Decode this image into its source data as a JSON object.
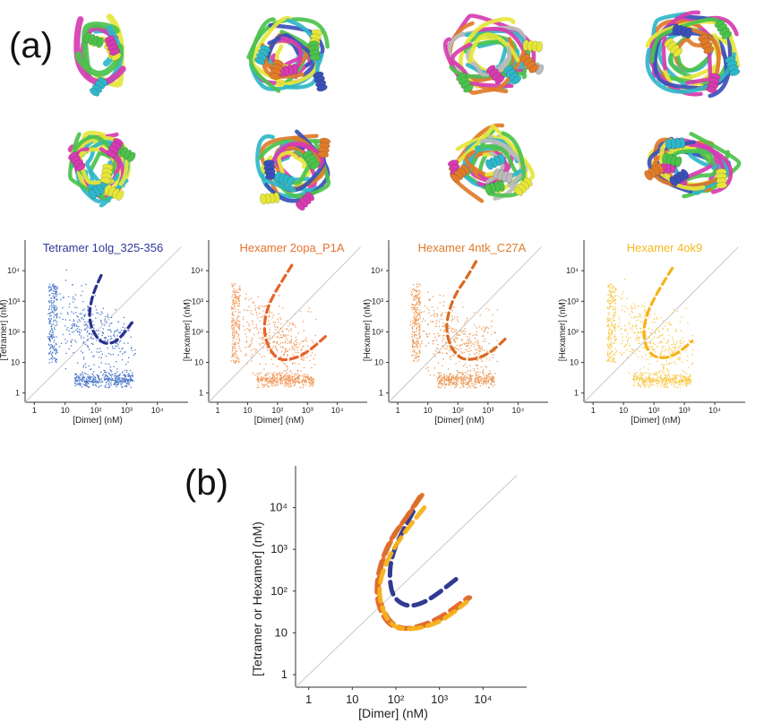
{
  "panel_labels": {
    "a": "(a)",
    "b": "(b)"
  },
  "structures": [
    {
      "name": "structure-tetramer-1olg",
      "colors": [
        "#2fb7c9",
        "#e6e63a",
        "#d63cb0",
        "#4cc24c"
      ]
    },
    {
      "name": "structure-hexamer-2opa",
      "colors": [
        "#2fb7c9",
        "#e6e63a",
        "#d63cb0",
        "#4cc24c",
        "#e07b2a",
        "#3a50b8"
      ]
    },
    {
      "name": "structure-hexamer-4ntk",
      "colors": [
        "#e6e63a",
        "#d63cb0",
        "#4cc24c",
        "#bbbbbb",
        "#2fb7c9",
        "#e07b2a"
      ]
    },
    {
      "name": "structure-hexamer-4ok9",
      "colors": [
        "#e6e63a",
        "#2fb7c9",
        "#d63cb0",
        "#4cc24c",
        "#3a50b8",
        "#e07b2a"
      ]
    }
  ],
  "chart_data": [
    {
      "type": "scatter",
      "title": "Tetramer 1olg_325-356",
      "title_color": "#2f3a9a",
      "point_color": "#4a78c8",
      "curve_color": "#27308c",
      "xlabel": "[Dimer] (nM)",
      "ylabel": "[Tetramer] (nM)",
      "x_ticks": [
        "1",
        "10",
        "10²",
        "10³",
        "10⁴"
      ],
      "y_ticks": [
        "1",
        "10",
        "10²",
        "10³",
        "10⁴"
      ],
      "xlim": [
        0.5,
        100000
      ],
      "ylim": [
        0.5,
        100000
      ],
      "diagonal": true,
      "trend_curve": {
        "x": [
          150,
          100,
          70,
          60,
          80,
          150,
          300,
          600,
          1500
        ],
        "y": [
          7000,
          3000,
          1000,
          300,
          100,
          45,
          40,
          60,
          200
        ]
      }
    },
    {
      "type": "scatter",
      "title": "Hexamer 2opa_P1A",
      "title_color": "#e8722a",
      "point_color": "#f29a5c",
      "curve_color": "#e8622a",
      "xlabel": "[Dimer] (nM)",
      "ylabel": "[Hexamer] (nM)",
      "x_ticks": [
        "1",
        "10",
        "10²",
        "10³",
        "10⁴"
      ],
      "y_ticks": [
        "1",
        "10",
        "10²",
        "10³",
        "10⁴"
      ],
      "xlim": [
        0.5,
        100000
      ],
      "ylim": [
        0.5,
        100000
      ],
      "diagonal": true,
      "trend_curve": {
        "x": [
          300,
          150,
          70,
          40,
          35,
          50,
          100,
          200,
          500,
          1200,
          4000
        ],
        "y": [
          15000,
          5000,
          1500,
          400,
          100,
          30,
          13,
          12,
          15,
          25,
          70
        ]
      }
    },
    {
      "type": "scatter",
      "title": "Hexamer 4ntk_C27A",
      "title_color": "#e07b2a",
      "point_color": "#ec9a58",
      "curve_color": "#d96a22",
      "xlabel": "[Dimer] (nM)",
      "ylabel": "[Hexamer] (nM)",
      "x_ticks": [
        "1",
        "10",
        "10²",
        "10³",
        "10⁴"
      ],
      "y_ticks": [
        "1",
        "10",
        "10²",
        "10³",
        "10⁴"
      ],
      "xlim": [
        0.5,
        100000
      ],
      "ylim": [
        0.5,
        100000
      ],
      "diagonal": true,
      "trend_curve": {
        "x": [
          400,
          200,
          90,
          50,
          40,
          55,
          110,
          250,
          600,
          1500,
          4500
        ],
        "y": [
          20000,
          6000,
          2000,
          500,
          120,
          35,
          14,
          12,
          15,
          25,
          70
        ]
      }
    },
    {
      "type": "scatter",
      "title": "Hexamer 4ok9",
      "title_color": "#f7b81f",
      "point_color": "#fac94a",
      "curve_color": "#f7b21a",
      "xlabel": "[Dimer] (nM)",
      "ylabel": "[Hexamer] (nM)",
      "x_ticks": [
        "1",
        "10",
        "10²",
        "10³",
        "10⁴"
      ],
      "y_ticks": [
        "1",
        "10",
        "10²",
        "10³",
        "10⁴"
      ],
      "xlim": [
        0.5,
        100000
      ],
      "ylim": [
        0.5,
        100000
      ],
      "diagonal": true,
      "trend_curve": {
        "x": [
          400,
          200,
          100,
          60,
          45,
          50,
          80,
          150,
          350,
          800,
          1800
        ],
        "y": [
          12000,
          4000,
          1200,
          400,
          120,
          40,
          18,
          14,
          15,
          25,
          50
        ]
      }
    },
    {
      "type": "line",
      "xlabel": "[Dimer] (nM)",
      "ylabel": "[Tetramer or Hexamer] (nM)",
      "x_ticks": [
        "1",
        "10",
        "10²",
        "10³",
        "10⁴"
      ],
      "y_ticks": [
        "1",
        "10",
        "10²",
        "10³",
        "10⁴"
      ],
      "xlim": [
        0.5,
        100000
      ],
      "ylim": [
        0.5,
        100000
      ],
      "diagonal": true,
      "series": [
        {
          "name": "Tetramer 1olg_325-356",
          "color": "#27308c",
          "x": [
            250,
            150,
            90,
            70,
            80,
            150,
            300,
            700,
            2500
          ],
          "y": [
            8000,
            3000,
            1000,
            300,
            80,
            45,
            45,
            70,
            200
          ]
        },
        {
          "name": "Hexamer 2opa_P1A",
          "color": "#e8622a",
          "x": [
            350,
            180,
            80,
            45,
            35,
            40,
            70,
            150,
            400,
            1200,
            4500
          ],
          "y": [
            18000,
            6000,
            2000,
            500,
            130,
            40,
            15,
            12,
            15,
            25,
            70
          ]
        },
        {
          "name": "Hexamer 4ntk_C27A",
          "color": "#d9702a",
          "x": [
            400,
            200,
            90,
            50,
            38,
            45,
            80,
            180,
            500,
            1500,
            5000
          ],
          "y": [
            20000,
            7000,
            2200,
            600,
            150,
            45,
            16,
            12,
            15,
            25,
            70
          ]
        },
        {
          "name": "Hexamer 4ok9",
          "color": "#f7b21a",
          "x": [
            450,
            220,
            100,
            55,
            40,
            48,
            85,
            190,
            520,
            1400,
            4200
          ],
          "y": [
            10000,
            4000,
            1300,
            400,
            120,
            35,
            14,
            12,
            14,
            22,
            55
          ]
        }
      ]
    }
  ]
}
